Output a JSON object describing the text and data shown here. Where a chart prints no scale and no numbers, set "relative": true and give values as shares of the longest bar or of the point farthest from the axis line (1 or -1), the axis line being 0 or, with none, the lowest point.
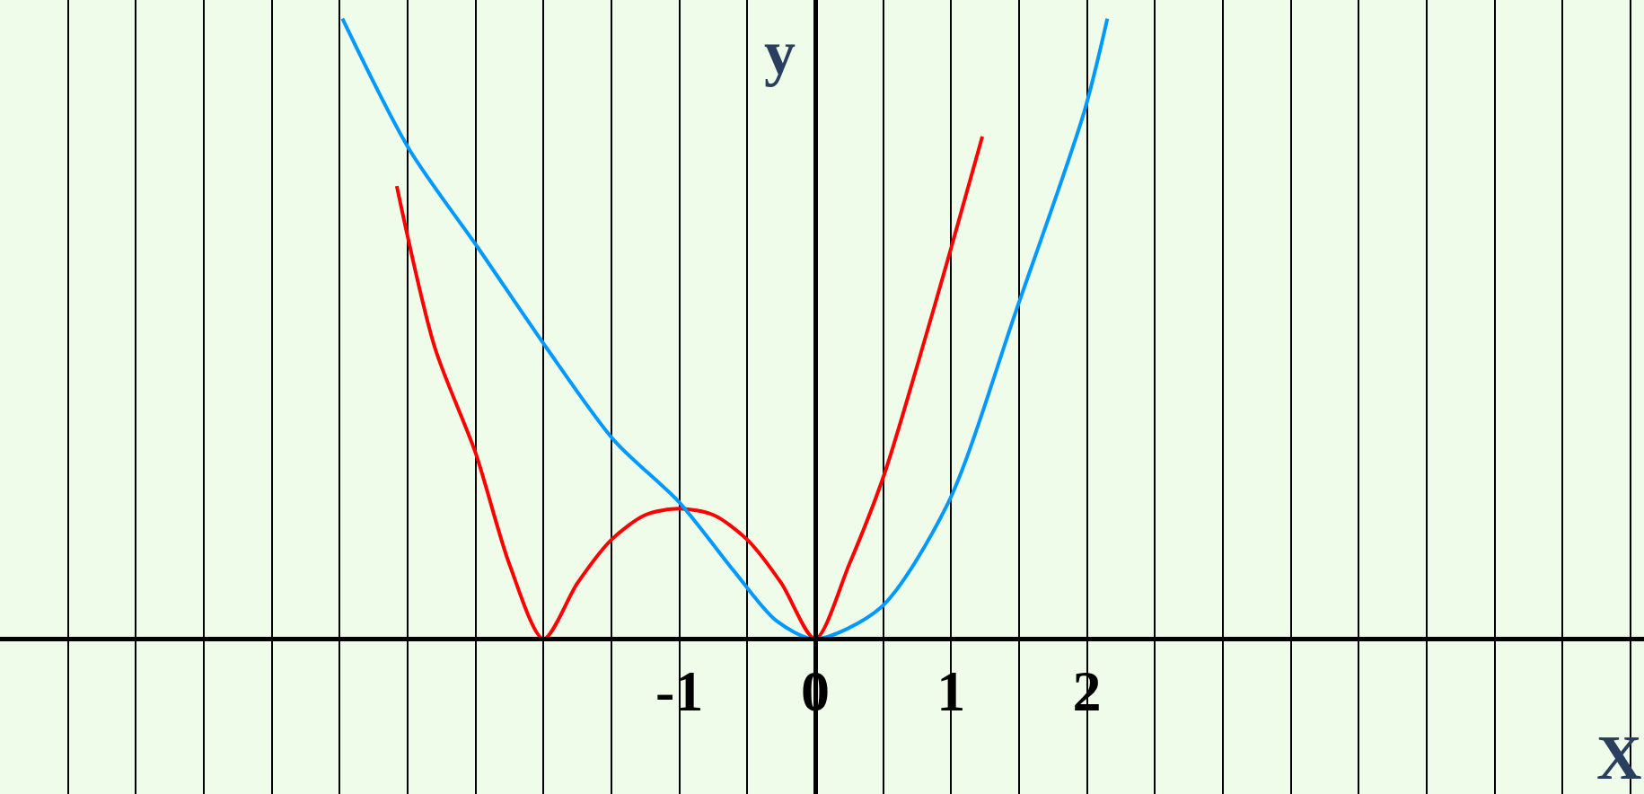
{
  "chart_data": {
    "type": "line",
    "xlabel": "X",
    "ylabel": "y",
    "relative": true,
    "grid": "x",
    "marker": "none",
    "line_style": "solid",
    "xlim": [
      -6,
      6.1
    ],
    "xticks": [
      {
        "value": -5.5,
        "label": null
      },
      {
        "value": -5,
        "label": null
      },
      {
        "value": -4.5,
        "label": null
      },
      {
        "value": -4,
        "label": null
      },
      {
        "value": -3.5,
        "label": null
      },
      {
        "value": -3,
        "label": null
      },
      {
        "value": -2.5,
        "label": null
      },
      {
        "value": -2,
        "label": null
      },
      {
        "value": -1.5,
        "label": null
      },
      -1,
      {
        "value": -0.5,
        "label": null
      },
      0,
      {
        "value": 0.5,
        "label": null
      },
      1,
      {
        "value": 1.5,
        "label": null
      },
      2,
      {
        "value": 2.5,
        "label": null
      },
      {
        "value": 3,
        "label": null
      },
      {
        "value": 3.5,
        "label": null
      },
      {
        "value": 4,
        "label": null
      },
      {
        "value": 4.5,
        "label": null
      },
      {
        "value": 5,
        "label": null
      },
      {
        "value": 5.5,
        "label": null
      },
      {
        "value": 6,
        "label": null
      }
    ],
    "series": [
      {
        "color": "#ff0000",
        "x": [
          -3.08,
          -2.8,
          -2.5,
          -2.25,
          -2,
          -1.75,
          -1.5,
          -1.25,
          -1,
          -0.75,
          -0.5,
          -0.25,
          0,
          0.25,
          0.5,
          0.75,
          1,
          1.23
        ],
        "values": [
          0.73,
          0.47,
          0.3,
          0.12,
          0,
          0.09,
          0.16,
          0.2,
          0.21,
          0.2,
          0.16,
          0.09,
          0,
          0.12,
          0.26,
          0.44,
          0.63,
          0.81
        ]
      },
      {
        "color": "#0099ff",
        "x": [
          -3.48,
          -2.99,
          -2.48,
          -1.98,
          -1.48,
          -1,
          -0.6,
          -0.29,
          0,
          0.48,
          0.98,
          1.48,
          1.98,
          2.15
        ],
        "values": [
          1.0,
          0.79,
          0.63,
          0.47,
          0.32,
          0.22,
          0.11,
          0.03,
          0,
          0.05,
          0.22,
          0.53,
          0.85,
          1.0
        ]
      }
    ]
  }
}
